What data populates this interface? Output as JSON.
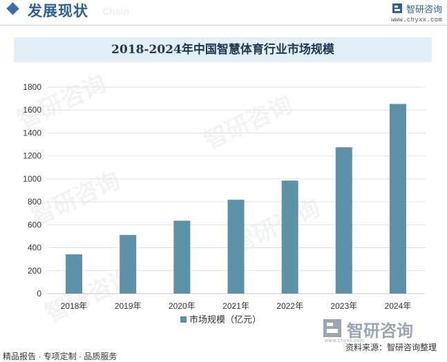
{
  "header": {
    "section_title": "发展现状",
    "section_subtitle": "Chain",
    "brand_name": "智研咨询",
    "brand_url": "www.chyxx.com"
  },
  "footer": {
    "left_text": "精品报告 · 专项定制 · 品质服务",
    "source_text": "资料来源：智研咨询整理",
    "brand_name": "智研咨询",
    "brand_url": "www.chyxx.com"
  },
  "watermark": {
    "text": "智研咨询"
  },
  "colors": {
    "bar": "#5d91a8",
    "accent": "#2f5f93",
    "title_bg": "#e3eef7"
  },
  "chart_data": {
    "type": "bar",
    "title": "2018-2024年中国智慧体育行业市场规模",
    "categories": [
      "2018年",
      "2019年",
      "2020年",
      "2021年",
      "2022年",
      "2023年",
      "2024年"
    ],
    "series": [
      {
        "name": "市场规模（亿元）",
        "values": [
          342,
          511,
          635,
          818,
          985,
          1275,
          1653
        ]
      }
    ],
    "ylim": [
      0,
      1800
    ],
    "yticks": [
      0,
      200,
      400,
      600,
      800,
      1000,
      1200,
      1400,
      1600,
      1800
    ],
    "grid": true,
    "legend": "bottom"
  }
}
